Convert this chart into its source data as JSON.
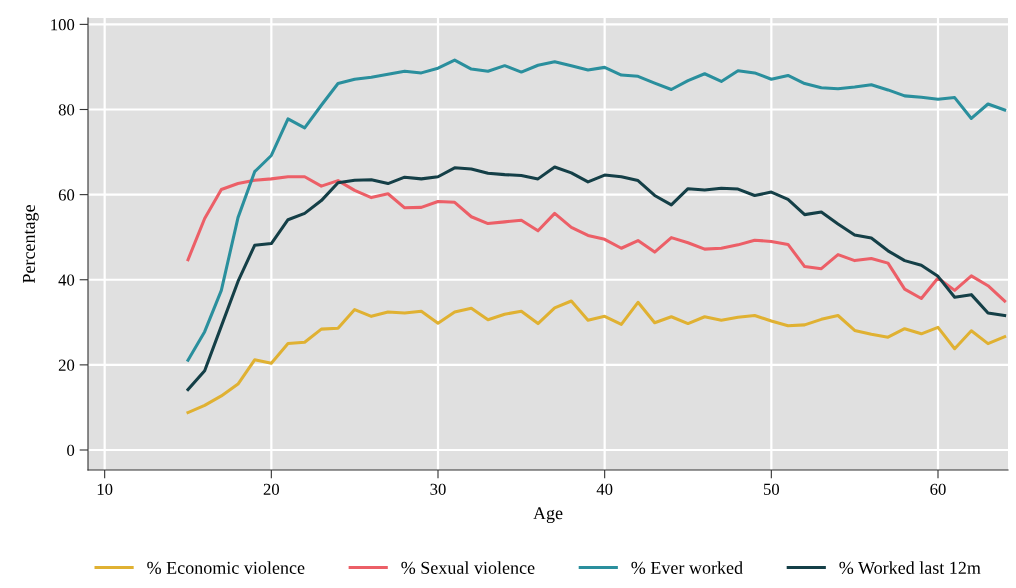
{
  "chart_data": {
    "type": "line",
    "xlabel": "Age",
    "ylabel": "Percentage",
    "x": [
      15,
      16,
      17,
      18,
      19,
      20,
      21,
      22,
      23,
      24,
      25,
      26,
      27,
      28,
      29,
      30,
      31,
      32,
      33,
      34,
      35,
      36,
      37,
      38,
      39,
      40,
      41,
      42,
      43,
      44,
      45,
      46,
      47,
      48,
      49,
      50,
      51,
      52,
      53,
      54,
      55,
      56,
      57,
      58,
      59,
      60,
      61,
      62,
      63,
      64
    ],
    "series": [
      {
        "name": "% Economic violence",
        "color": "#e0b132",
        "values": [
          8.8,
          10.5,
          12.7,
          15.5,
          21.2,
          20.4,
          25,
          25.3,
          28.4,
          28.6,
          33,
          31.4,
          32.4,
          32.2,
          32.6,
          29.8,
          32.4,
          33.3,
          30.6,
          31.9,
          32.6,
          29.7,
          33.4,
          35,
          30.5,
          31.4,
          29.5,
          34.7,
          29.9,
          31.3,
          29.7,
          31.3,
          30.5,
          31.2,
          31.6,
          30.3,
          29.2,
          29.4,
          30.7,
          31.6,
          28.1,
          27.2,
          26.5,
          28.5,
          27.3,
          28.8,
          23.8,
          28,
          25,
          26.6
        ]
      },
      {
        "name": "% Sexual violence",
        "color": "#ec5f67",
        "values": [
          44.7,
          54.4,
          61.2,
          62.6,
          63.4,
          63.7,
          64.2,
          64.2,
          62,
          63.3,
          61,
          59.3,
          60.2,
          56.9,
          57,
          58.4,
          58.2,
          54.8,
          53.2,
          53.6,
          54,
          51.5,
          55.6,
          52.3,
          50.4,
          49.5,
          47.4,
          49.2,
          46.5,
          49.9,
          48.7,
          47.2,
          47.4,
          48.2,
          49.3,
          49,
          48.3,
          43.1,
          42.6,
          45.9,
          44.5,
          45,
          43.9,
          37.8,
          35.6,
          40.4,
          37.5,
          40.9,
          38.6,
          35
        ]
      },
      {
        "name": "% Ever worked",
        "color": "#2a8f9d",
        "values": [
          21.1,
          27.8,
          37.5,
          54.6,
          65.4,
          69.2,
          77.8,
          75.7,
          81,
          86.1,
          87.1,
          87.6,
          88.3,
          89,
          88.6,
          89.7,
          91.6,
          89.5,
          89,
          90.3,
          88.8,
          90.4,
          91.2,
          90.3,
          89.3,
          89.9,
          88.1,
          87.8,
          86.2,
          84.7,
          86.8,
          88.4,
          86.6,
          89.1,
          88.6,
          87.1,
          88,
          86.1,
          85.1,
          84.9,
          85.3,
          85.8,
          84.6,
          83.2,
          82.9,
          82.4,
          82.8,
          77.9,
          81.3,
          79.9
        ]
      },
      {
        "name": "% Worked last 12m",
        "color": "#143f47",
        "values": [
          14.2,
          18.6,
          29.1,
          39.6,
          48.1,
          48.5,
          54.1,
          55.6,
          58.6,
          62.8,
          63.4,
          63.5,
          62.6,
          64.1,
          63.7,
          64.2,
          66.3,
          66,
          65,
          64.7,
          64.5,
          63.7,
          66.5,
          65.1,
          63,
          64.6,
          64.2,
          63.3,
          59.8,
          57.6,
          61.4,
          61.1,
          61.5,
          61.3,
          59.8,
          60.6,
          58.9,
          55.3,
          55.9,
          53.1,
          50.5,
          49.8,
          46.8,
          44.5,
          43.4,
          40.8,
          35.9,
          36.5,
          32.2,
          31.6
        ]
      }
    ],
    "xlim": [
      9,
      64.2
    ],
    "xticks": [
      10,
      20,
      30,
      40,
      50,
      60
    ],
    "ylim": [
      -4.7,
      101.5
    ],
    "yticks": [
      0,
      20,
      40,
      60,
      80,
      100
    ],
    "grid": true,
    "legend": "bottom",
    "line_style": "solid"
  }
}
